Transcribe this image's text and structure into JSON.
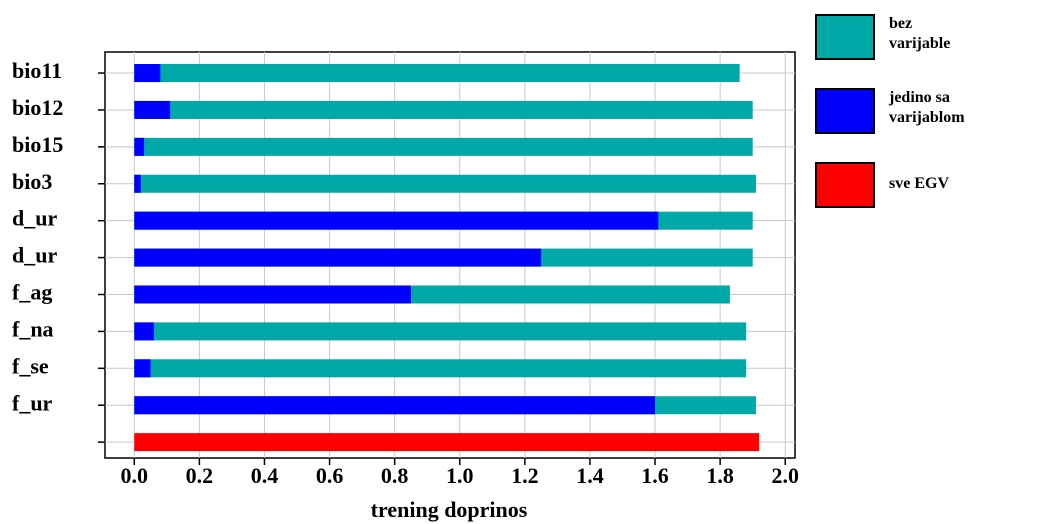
{
  "chart_data": {
    "type": "bar",
    "orientation": "horizontal",
    "overlay": true,
    "xlabel": "trening doprinos",
    "categories": [
      "bio11",
      "bio12",
      "bio15",
      "bio3",
      "d_ur",
      "d_ur",
      "f_ag",
      "f_na",
      "f_se",
      "f_ur",
      null
    ],
    "series": [
      {
        "name": "bez varijable",
        "color": "#00a8a8",
        "values": [
          1.86,
          1.9,
          1.9,
          1.91,
          1.9,
          1.9,
          1.83,
          1.88,
          1.88,
          1.91,
          null
        ]
      },
      {
        "name": "jedino sa varijablom",
        "color": "#0000ff",
        "values": [
          0.08,
          0.11,
          0.03,
          0.02,
          1.61,
          1.25,
          0.85,
          0.06,
          0.05,
          1.6,
          null
        ]
      },
      {
        "name": "sve EGV",
        "color": "#ff0000",
        "values": [
          null,
          null,
          null,
          null,
          null,
          null,
          null,
          null,
          null,
          null,
          1.92
        ]
      }
    ],
    "xlim": [
      -0.09,
      2.03
    ],
    "xticks": [
      {
        "value": 0,
        "label": "0.0"
      },
      0.2,
      0.4,
      0.6,
      0.8,
      {
        "value": 1,
        "label": "1.0"
      },
      1.2,
      1.4,
      1.6,
      1.8,
      {
        "value": 2,
        "label": "2.0"
      }
    ],
    "grid": true
  }
}
